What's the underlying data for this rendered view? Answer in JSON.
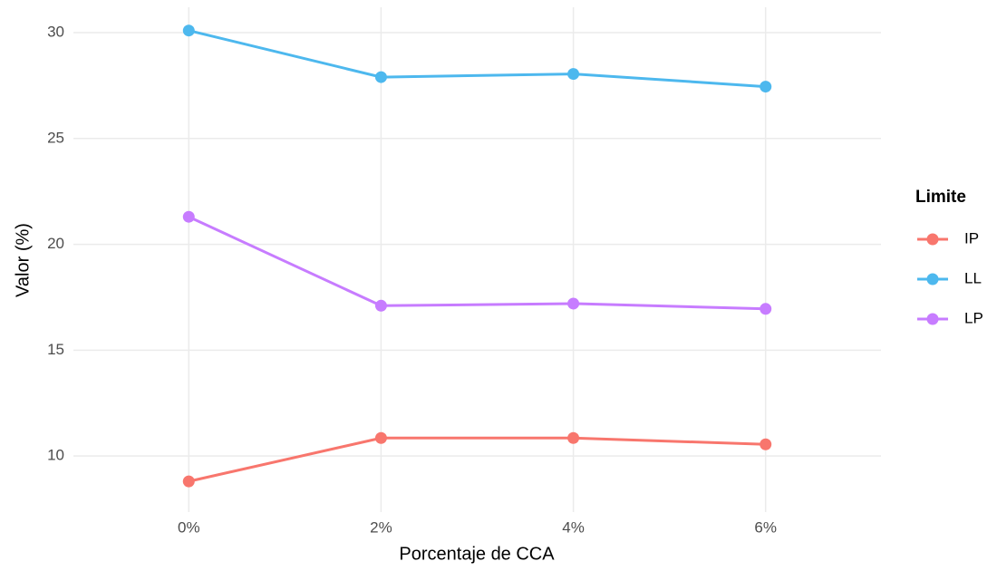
{
  "chart_data": {
    "type": "line",
    "x_label": "Porcentaje de CCA",
    "y_label": "Valor (%)",
    "categories": [
      "0%",
      "2%",
      "4%",
      "6%"
    ],
    "series": [
      {
        "name": "IP",
        "color": "#F8766D",
        "values": [
          8.8,
          10.85,
          10.85,
          10.55
        ]
      },
      {
        "name": "LL",
        "color": "#4DB8EE",
        "values": [
          30.1,
          27.9,
          28.05,
          27.45
        ]
      },
      {
        "name": "LP",
        "color": "#C77CFF",
        "values": [
          21.3,
          17.1,
          17.2,
          16.95
        ]
      }
    ],
    "ylim": [
      7.35,
      31.2
    ],
    "yticks": [
      10,
      15,
      20,
      25,
      30
    ],
    "grid": true,
    "legend": {
      "title": "Limite",
      "position": "right"
    }
  }
}
